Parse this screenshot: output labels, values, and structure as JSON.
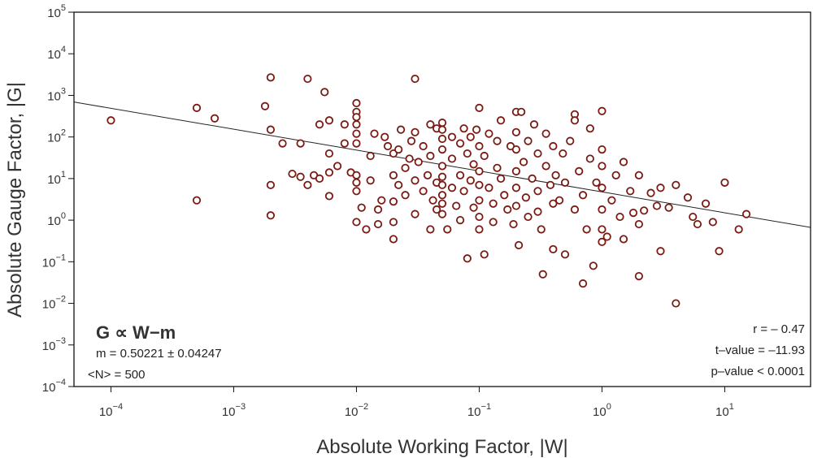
{
  "chart_data": {
    "type": "scatter",
    "xlabel": "Absolute Working Factor, |W|",
    "ylabel": "Absolute Gauge Factor, |G|",
    "xscale": "log",
    "yscale": "log",
    "xlim": [
      5e-05,
      50
    ],
    "ylim": [
      0.0001,
      100000
    ],
    "x_tick_labels": [
      "10−4",
      "10−3",
      "10−2",
      "10−1",
      "100",
      "101"
    ],
    "y_tick_labels": [
      "10−4",
      "10−3",
      "10−2",
      "10−1",
      "100",
      "101",
      "102",
      "103",
      "104",
      "105"
    ],
    "grid": false,
    "legend": "none",
    "marker_color": "#7a1a12",
    "fit_line": {
      "intercept": 0.68,
      "slope": -0.50221,
      "color": "#222222"
    },
    "annotations": {
      "relation": "G ∝ W−m",
      "m_value": "m = 0.50221 ± 0.04247",
      "n_value": "<N> = 500",
      "r_value": "r = – 0.47",
      "t_value": "t–value = –11.93",
      "p_value": "p–value < 0.0001"
    },
    "points": [
      [
        0.0001,
        250
      ],
      [
        0.0005,
        3
      ],
      [
        0.0005,
        500
      ],
      [
        0.0007,
        280
      ],
      [
        0.0018,
        550
      ],
      [
        0.002,
        2700
      ],
      [
        0.002,
        150
      ],
      [
        0.002,
        7
      ],
      [
        0.002,
        1.3
      ],
      [
        0.0025,
        70
      ],
      [
        0.003,
        13
      ],
      [
        0.0035,
        11
      ],
      [
        0.0035,
        70
      ],
      [
        0.004,
        2500
      ],
      [
        0.004,
        7
      ],
      [
        0.0045,
        12
      ],
      [
        0.005,
        200
      ],
      [
        0.005,
        10
      ],
      [
        0.0055,
        1200
      ],
      [
        0.006,
        250
      ],
      [
        0.006,
        40
      ],
      [
        0.006,
        3.8
      ],
      [
        0.006,
        14
      ],
      [
        0.007,
        20
      ],
      [
        0.008,
        200
      ],
      [
        0.008,
        70
      ],
      [
        0.009,
        14
      ],
      [
        0.01,
        650
      ],
      [
        0.01,
        400
      ],
      [
        0.01,
        300
      ],
      [
        0.01,
        200
      ],
      [
        0.01,
        120
      ],
      [
        0.01,
        70
      ],
      [
        0.01,
        12
      ],
      [
        0.01,
        8
      ],
      [
        0.01,
        5
      ],
      [
        0.01,
        0.9
      ],
      [
        0.011,
        2
      ],
      [
        0.012,
        0.6
      ],
      [
        0.013,
        35
      ],
      [
        0.013,
        9
      ],
      [
        0.014,
        120
      ],
      [
        0.015,
        0.8
      ],
      [
        0.015,
        1.8
      ],
      [
        0.016,
        3
      ],
      [
        0.017,
        100
      ],
      [
        0.018,
        60
      ],
      [
        0.02,
        40
      ],
      [
        0.02,
        12
      ],
      [
        0.02,
        2.8
      ],
      [
        0.02,
        0.9
      ],
      [
        0.02,
        0.35
      ],
      [
        0.022,
        50
      ],
      [
        0.022,
        7
      ],
      [
        0.023,
        150
      ],
      [
        0.025,
        4
      ],
      [
        0.025,
        18
      ],
      [
        0.027,
        30
      ],
      [
        0.028,
        80
      ],
      [
        0.03,
        2500
      ],
      [
        0.03,
        130
      ],
      [
        0.03,
        9
      ],
      [
        0.03,
        1.4
      ],
      [
        0.032,
        25
      ],
      [
        0.035,
        5
      ],
      [
        0.035,
        60
      ],
      [
        0.038,
        12
      ],
      [
        0.04,
        200
      ],
      [
        0.04,
        35
      ],
      [
        0.04,
        0.6
      ],
      [
        0.042,
        3
      ],
      [
        0.045,
        160
      ],
      [
        0.045,
        8
      ],
      [
        0.045,
        1.8
      ],
      [
        0.05,
        220
      ],
      [
        0.05,
        150
      ],
      [
        0.05,
        90
      ],
      [
        0.05,
        50
      ],
      [
        0.05,
        20
      ],
      [
        0.05,
        11
      ],
      [
        0.05,
        7
      ],
      [
        0.05,
        4
      ],
      [
        0.05,
        2.5
      ],
      [
        0.05,
        1.4
      ],
      [
        0.055,
        0.6
      ],
      [
        0.06,
        100
      ],
      [
        0.06,
        30
      ],
      [
        0.06,
        6
      ],
      [
        0.065,
        2.2
      ],
      [
        0.07,
        70
      ],
      [
        0.07,
        12
      ],
      [
        0.07,
        1
      ],
      [
        0.075,
        160
      ],
      [
        0.075,
        5
      ],
      [
        0.08,
        40
      ],
      [
        0.08,
        0.12
      ],
      [
        0.085,
        100
      ],
      [
        0.085,
        9
      ],
      [
        0.09,
        22
      ],
      [
        0.09,
        2
      ],
      [
        0.095,
        150
      ],
      [
        0.1,
        500
      ],
      [
        0.1,
        60
      ],
      [
        0.1,
        15
      ],
      [
        0.1,
        7
      ],
      [
        0.1,
        3
      ],
      [
        0.1,
        1.2
      ],
      [
        0.1,
        0.6
      ],
      [
        0.11,
        0.15
      ],
      [
        0.11,
        35
      ],
      [
        0.12,
        120
      ],
      [
        0.12,
        6
      ],
      [
        0.13,
        2.5
      ],
      [
        0.13,
        0.9
      ],
      [
        0.14,
        80
      ],
      [
        0.14,
        18
      ],
      [
        0.15,
        250
      ],
      [
        0.15,
        10
      ],
      [
        0.16,
        4
      ],
      [
        0.17,
        1.8
      ],
      [
        0.18,
        60
      ],
      [
        0.19,
        0.8
      ],
      [
        0.2,
        400
      ],
      [
        0.2,
        130
      ],
      [
        0.2,
        50
      ],
      [
        0.2,
        15
      ],
      [
        0.2,
        6
      ],
      [
        0.2,
        2.2
      ],
      [
        0.21,
        0.25
      ],
      [
        0.22,
        400
      ],
      [
        0.23,
        25
      ],
      [
        0.24,
        3.5
      ],
      [
        0.25,
        80
      ],
      [
        0.25,
        1.2
      ],
      [
        0.27,
        10
      ],
      [
        0.28,
        200
      ],
      [
        0.3,
        40
      ],
      [
        0.3,
        5
      ],
      [
        0.3,
        1.6
      ],
      [
        0.32,
        0.6
      ],
      [
        0.33,
        0.05
      ],
      [
        0.35,
        120
      ],
      [
        0.35,
        20
      ],
      [
        0.38,
        7
      ],
      [
        0.4,
        60
      ],
      [
        0.4,
        2.5
      ],
      [
        0.4,
        0.2
      ],
      [
        0.42,
        12
      ],
      [
        0.45,
        3
      ],
      [
        0.48,
        40
      ],
      [
        0.5,
        0.15
      ],
      [
        0.5,
        8
      ],
      [
        0.55,
        80
      ],
      [
        0.6,
        350
      ],
      [
        0.6,
        250
      ],
      [
        0.6,
        1.8
      ],
      [
        0.65,
        15
      ],
      [
        0.7,
        0.03
      ],
      [
        0.7,
        4
      ],
      [
        0.75,
        0.6
      ],
      [
        0.8,
        160
      ],
      [
        0.8,
        30
      ],
      [
        0.85,
        0.08
      ],
      [
        0.9,
        8
      ],
      [
        1,
        420
      ],
      [
        1,
        50
      ],
      [
        1,
        20
      ],
      [
        1,
        6
      ],
      [
        1,
        1.8
      ],
      [
        1,
        0.6
      ],
      [
        1,
        0.3
      ],
      [
        1.1,
        0.4
      ],
      [
        1.2,
        3
      ],
      [
        1.3,
        12
      ],
      [
        1.4,
        1.2
      ],
      [
        1.5,
        25
      ],
      [
        1.5,
        0.35
      ],
      [
        1.7,
        5
      ],
      [
        1.8,
        1.5
      ],
      [
        2,
        12
      ],
      [
        2,
        0.8
      ],
      [
        2,
        0.045
      ],
      [
        2.2,
        1.7
      ],
      [
        2.5,
        4.5
      ],
      [
        2.8,
        2.2
      ],
      [
        3,
        0.18
      ],
      [
        3,
        6
      ],
      [
        3.5,
        2
      ],
      [
        4,
        0.01
      ],
      [
        4,
        7
      ],
      [
        5,
        3.5
      ],
      [
        5.5,
        1.2
      ],
      [
        6,
        0.8
      ],
      [
        7,
        2.5
      ],
      [
        8,
        0.9
      ],
      [
        9,
        0.18
      ],
      [
        10,
        8
      ],
      [
        13,
        0.6
      ],
      [
        15,
        1.4
      ]
    ]
  }
}
